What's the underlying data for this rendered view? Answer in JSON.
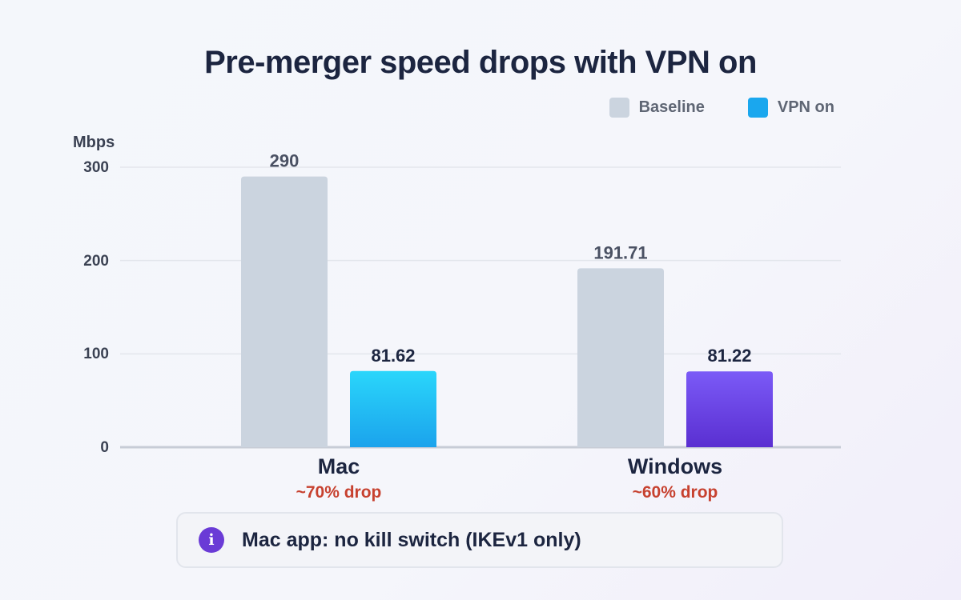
{
  "chart_data": {
    "type": "bar",
    "title": "Pre-merger speed drops with VPN on",
    "ylabel": "Mbps",
    "ylim": [
      0,
      300
    ],
    "yticks": [
      0,
      100,
      200,
      300
    ],
    "grid": true,
    "legend_position": "top-right",
    "categories": [
      "Mac",
      "Windows"
    ],
    "category_notes": [
      "~70% drop",
      "~60% drop"
    ],
    "series": [
      {
        "name": "Baseline",
        "values": [
          290,
          191.71
        ],
        "labels": [
          "290",
          "191.71"
        ],
        "color": "#cbd4df"
      },
      {
        "name": "VPN on",
        "values": [
          81.62,
          81.22
        ],
        "labels": [
          "81.62",
          "81.22"
        ],
        "color": "#1aa7ee"
      }
    ],
    "vpn_bar_colors": [
      "#1fb8f5",
      "#6f43e8"
    ],
    "note_text": "Mac app: no kill switch (IKEv1 only)",
    "note_icon": "info-icon"
  }
}
